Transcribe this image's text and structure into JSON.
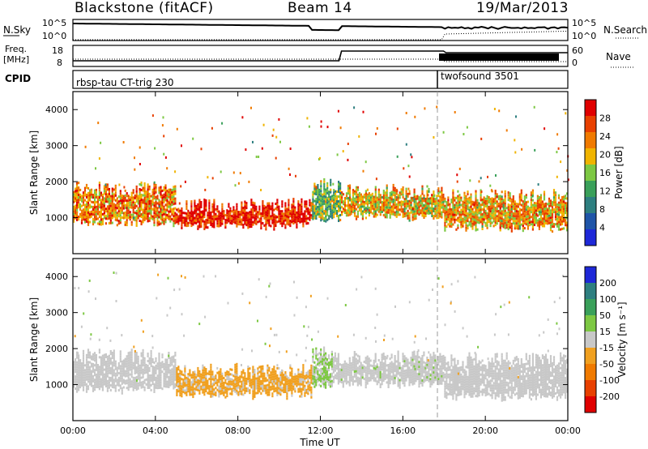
{
  "header": {
    "station": "Blackstone (fitACF)",
    "beam": "Beam 14",
    "date": "19/Mar/2013"
  },
  "panels": {
    "nsky": {
      "label": "N.Sky",
      "ticks": [
        "10^5",
        "10^0"
      ],
      "right_label": "N.Search"
    },
    "freq": {
      "label_top": "Freq.",
      "label_bottom": "[MHz]",
      "ticks_left": [
        "18",
        "8"
      ],
      "ticks_right": [
        "60",
        "0"
      ],
      "right_label": "Nave"
    },
    "cpid": {
      "label": "CPID",
      "programs": [
        "rbsp-tau CT-trig 230",
        "twofsound 3501"
      ]
    }
  },
  "colors": {
    "power": [
      "#1e28d8",
      "#1f55a8",
      "#2e7f80",
      "#3aa05a",
      "#7dc843",
      "#f0b400",
      "#f07a00",
      "#e84000",
      "#e00000"
    ],
    "velocity": [
      "#e00000",
      "#e84000",
      "#f07a00",
      "#f0a020",
      "#c8c8c8",
      "#7dc843",
      "#3aa05a",
      "#2e7f80",
      "#1e28d8"
    ]
  },
  "chart_data": [
    {
      "type": "heatmap",
      "title": "Power",
      "xlabel": "",
      "ylabel": "Slant Range [km]",
      "xlim": [
        "00:00",
        "24:00"
      ],
      "ylim": [
        0,
        4500
      ],
      "yticks": [
        "1000",
        "2000",
        "3000",
        "4000"
      ],
      "colorbar": {
        "label": "Power [dB]",
        "ticks": [
          "4",
          "8",
          "12",
          "16",
          "20",
          "24",
          "28"
        ],
        "range": [
          0,
          30
        ]
      },
      "regions": [
        {
          "t0": 0.0,
          "t1": 5.0,
          "r0": 900,
          "r1": 1800,
          "value": 22
        },
        {
          "t0": 5.0,
          "t1": 11.6,
          "r0": 800,
          "r1": 1350,
          "value": 27
        },
        {
          "t0": 11.6,
          "t1": 13.0,
          "r0": 1000,
          "r1": 1900,
          "value": 14
        },
        {
          "t0": 13.0,
          "t1": 18.0,
          "r0": 1050,
          "r1": 1750,
          "value": 19
        },
        {
          "t0": 18.0,
          "t1": 24.0,
          "r0": 750,
          "r1": 1600,
          "value": 20
        }
      ]
    },
    {
      "type": "heatmap",
      "title": "Velocity",
      "xlabel": "Time UT",
      "ylabel": "Slant Range [km]",
      "xlim": [
        "00:00",
        "24:00"
      ],
      "ylim": [
        0,
        4500
      ],
      "xticks": [
        "00:00",
        "04:00",
        "08:00",
        "12:00",
        "16:00",
        "20:00",
        "00:00"
      ],
      "yticks": [
        "1000",
        "2000",
        "3000",
        "4000"
      ],
      "colorbar": {
        "label": "Velocity [m s⁻¹]",
        "ticks": [
          "200",
          "100",
          "50",
          "15",
          "-15",
          "-50",
          "-100",
          "-200"
        ],
        "range": [
          -250,
          250
        ]
      },
      "regions": [
        {
          "t0": 0.0,
          "t1": 5.0,
          "r0": 900,
          "r1": 1800,
          "value": 0
        },
        {
          "t0": 5.0,
          "t1": 11.6,
          "r0": 750,
          "r1": 1400,
          "value": -40
        },
        {
          "t0": 11.6,
          "t1": 12.6,
          "r0": 1000,
          "r1": 1900,
          "value": 30
        },
        {
          "t0": 12.6,
          "t1": 18.0,
          "r0": 1050,
          "r1": 1750,
          "value": 10
        },
        {
          "t0": 18.0,
          "t1": 24.0,
          "r0": 700,
          "r1": 1700,
          "value": 0
        }
      ]
    }
  ]
}
